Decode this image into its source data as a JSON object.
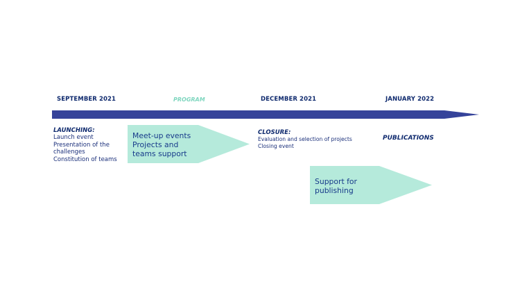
{
  "headers": {
    "sep": "SEPTEMBER 2021",
    "program": "PROGRAM",
    "dec": "DECEMBER 2021",
    "jan": "JANUARY 2022"
  },
  "launching": {
    "title": "LAUNCHING:",
    "lines": [
      "Launch event",
      "Presentation of the",
      "challenges",
      "Constitution of teams"
    ]
  },
  "program_arrow": {
    "lines": [
      "Meet-up events",
      "Projects and",
      "teams support"
    ]
  },
  "closure": {
    "title": "CLOSURE:",
    "lines": [
      "Evaluation and selection of projects",
      "Closing event"
    ]
  },
  "publications": {
    "title": "PUBLICATIONS"
  },
  "support_arrow": {
    "lines": [
      "Support for",
      "publishing"
    ]
  },
  "colors": {
    "timeline": "#35439a",
    "arrow_fill": "#b5eadb",
    "text_navy": "#0f2a6e",
    "program_label": "#7fd6bf"
  }
}
